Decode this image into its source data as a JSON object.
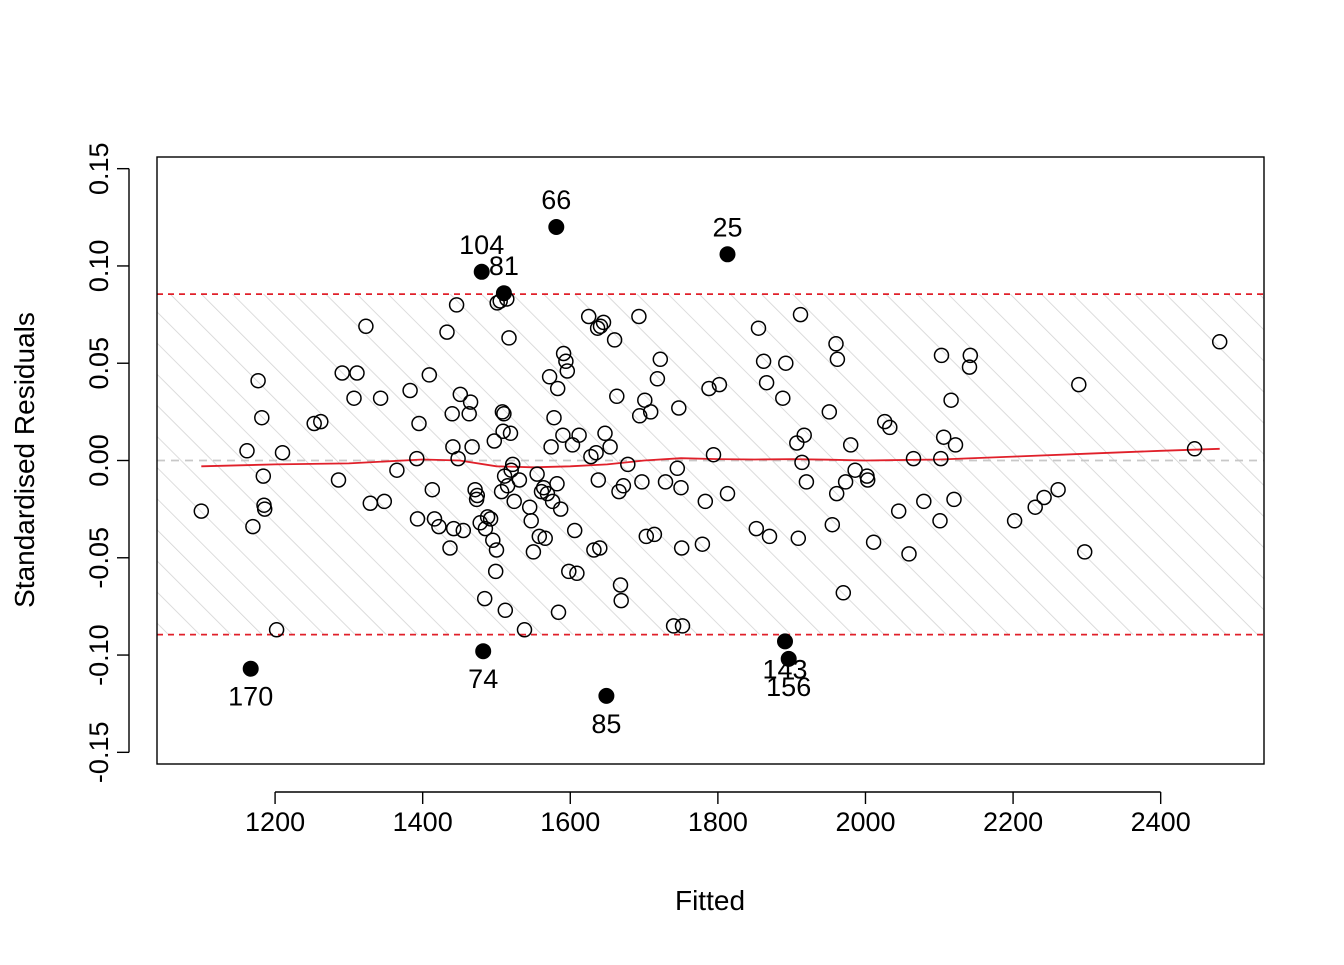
{
  "chart_data": {
    "type": "scatter",
    "title": "",
    "xlabel": "Fitted",
    "ylabel": "Standardised Residuals",
    "xlim": [
      1040,
      2540
    ],
    "ylim": [
      -0.156,
      0.156
    ],
    "xticks": [
      1200,
      1400,
      1600,
      1800,
      2000,
      2200,
      2400
    ],
    "xtick_labels": [
      "1200",
      "1400",
      "1600",
      "1800",
      "2000",
      "2200",
      "2400"
    ],
    "yticks": [
      -0.15,
      -0.1,
      -0.05,
      0.0,
      0.05,
      0.1,
      0.15
    ],
    "ytick_labels": [
      "-0.15",
      "-0.10",
      "-0.05",
      "0.00",
      "0.05",
      "0.10",
      "0.15"
    ],
    "colors": {
      "band_lines": "#e0202a",
      "smooth_line": "#e0202a",
      "zero_line": "#c8c8c8",
      "hatch": "#d4d4d4",
      "points": "#000000"
    },
    "band": {
      "lower": -0.0895,
      "upper": 0.0855
    },
    "zero_line": 0,
    "points": [
      [
        1100,
        -0.026
      ],
      [
        1162,
        0.005
      ],
      [
        1170,
        -0.034
      ],
      [
        1177,
        0.041
      ],
      [
        1182,
        0.022
      ],
      [
        1184,
        -0.008
      ],
      [
        1185,
        -0.023
      ],
      [
        1186,
        -0.025
      ],
      [
        1202,
        -0.087
      ],
      [
        1210,
        0.004
      ],
      [
        1253,
        0.019
      ],
      [
        1262,
        0.02
      ],
      [
        1286,
        -0.01
      ],
      [
        1291,
        0.045
      ],
      [
        1307,
        0.032
      ],
      [
        1311,
        0.045
      ],
      [
        1323,
        0.069
      ],
      [
        1329,
        -0.022
      ],
      [
        1343,
        0.032
      ],
      [
        1348,
        -0.021
      ],
      [
        1365,
        -0.005
      ],
      [
        1383,
        0.036
      ],
      [
        1392,
        0.001
      ],
      [
        1393,
        -0.03
      ],
      [
        1395,
        0.019
      ],
      [
        1409,
        0.044
      ],
      [
        1413,
        -0.015
      ],
      [
        1416,
        -0.03
      ],
      [
        1422,
        -0.034
      ],
      [
        1433,
        0.066
      ],
      [
        1437,
        -0.045
      ],
      [
        1440,
        0.024
      ],
      [
        1441,
        0.007
      ],
      [
        1442,
        -0.035
      ],
      [
        1446,
        0.08
      ],
      [
        1448,
        0.001
      ],
      [
        1451,
        0.034
      ],
      [
        1455,
        -0.036
      ],
      [
        1463,
        0.024
      ],
      [
        1465,
        0.03
      ],
      [
        1467,
        0.007
      ],
      [
        1471,
        -0.015
      ],
      [
        1473,
        -0.02
      ],
      [
        1474,
        -0.018
      ],
      [
        1478,
        -0.032
      ],
      [
        1484,
        -0.071
      ],
      [
        1485,
        -0.035
      ],
      [
        1488,
        -0.029
      ],
      [
        1492,
        -0.03
      ],
      [
        1495,
        -0.041
      ],
      [
        1497,
        0.01
      ],
      [
        1499,
        -0.057
      ],
      [
        1500,
        -0.046
      ],
      [
        1501,
        0.081
      ],
      [
        1505,
        0.082
      ],
      [
        1507,
        -0.016
      ],
      [
        1508,
        0.025
      ],
      [
        1509,
        0.015
      ],
      [
        1510,
        0.024
      ],
      [
        1511,
        -0.008
      ],
      [
        1512,
        -0.077
      ],
      [
        1514,
        0.083
      ],
      [
        1515,
        -0.013
      ],
      [
        1517,
        0.063
      ],
      [
        1519,
        0.014
      ],
      [
        1520,
        -0.005
      ],
      [
        1522,
        -0.002
      ],
      [
        1524,
        -0.021
      ],
      [
        1531,
        -0.01
      ],
      [
        1538,
        -0.087
      ],
      [
        1545,
        -0.024
      ],
      [
        1547,
        -0.031
      ],
      [
        1550,
        -0.047
      ],
      [
        1555,
        -0.007
      ],
      [
        1558,
        -0.039
      ],
      [
        1561,
        -0.016
      ],
      [
        1564,
        -0.014
      ],
      [
        1566,
        -0.04
      ],
      [
        1569,
        -0.017
      ],
      [
        1572,
        0.043
      ],
      [
        1574,
        0.007
      ],
      [
        1576,
        -0.021
      ],
      [
        1578,
        0.022
      ],
      [
        1582,
        -0.012
      ],
      [
        1583,
        0.037
      ],
      [
        1584,
        -0.078
      ],
      [
        1587,
        -0.025
      ],
      [
        1590,
        0.013
      ],
      [
        1591,
        0.055
      ],
      [
        1594,
        0.051
      ],
      [
        1596,
        0.046
      ],
      [
        1598,
        -0.057
      ],
      [
        1603,
        0.008
      ],
      [
        1606,
        -0.036
      ],
      [
        1609,
        -0.058
      ],
      [
        1612,
        0.013
      ],
      [
        1625,
        0.074
      ],
      [
        1628,
        0.002
      ],
      [
        1632,
        -0.046
      ],
      [
        1635,
        0.004
      ],
      [
        1637,
        0.068
      ],
      [
        1638,
        -0.01
      ],
      [
        1640,
        -0.045
      ],
      [
        1641,
        0.069
      ],
      [
        1645,
        0.071
      ],
      [
        1647,
        0.014
      ],
      [
        1654,
        0.007
      ],
      [
        1660,
        0.062
      ],
      [
        1663,
        0.033
      ],
      [
        1666,
        -0.016
      ],
      [
        1668,
        -0.064
      ],
      [
        1669,
        -0.072
      ],
      [
        1672,
        -0.013
      ],
      [
        1678,
        -0.002
      ],
      [
        1693,
        0.074
      ],
      [
        1694,
        0.023
      ],
      [
        1697,
        -0.011
      ],
      [
        1701,
        0.031
      ],
      [
        1703,
        -0.039
      ],
      [
        1709,
        0.025
      ],
      [
        1714,
        -0.038
      ],
      [
        1718,
        0.042
      ],
      [
        1722,
        0.052
      ],
      [
        1729,
        -0.011
      ],
      [
        1740,
        -0.085
      ],
      [
        1745,
        -0.004
      ],
      [
        1747,
        0.027
      ],
      [
        1750,
        -0.014
      ],
      [
        1751,
        -0.045
      ],
      [
        1752,
        -0.085
      ],
      [
        1779,
        -0.043
      ],
      [
        1783,
        -0.021
      ],
      [
        1788,
        0.037
      ],
      [
        1794,
        0.003
      ],
      [
        1802,
        0.039
      ],
      [
        1813,
        -0.017
      ],
      [
        1852,
        -0.035
      ],
      [
        1855,
        0.068
      ],
      [
        1862,
        0.051
      ],
      [
        1866,
        0.04
      ],
      [
        1870,
        -0.039
      ],
      [
        1888,
        0.032
      ],
      [
        1892,
        0.05
      ],
      [
        1907,
        0.009
      ],
      [
        1909,
        -0.04
      ],
      [
        1912,
        0.075
      ],
      [
        1914,
        -0.001
      ],
      [
        1917,
        0.013
      ],
      [
        1920,
        -0.011
      ],
      [
        1951,
        0.025
      ],
      [
        1955,
        -0.033
      ],
      [
        1960,
        0.06
      ],
      [
        1961,
        -0.017
      ],
      [
        1962,
        0.052
      ],
      [
        1970,
        -0.068
      ],
      [
        1973,
        -0.011
      ],
      [
        1980,
        0.008
      ],
      [
        1986,
        -0.005
      ],
      [
        2002,
        -0.008
      ],
      [
        2003,
        -0.01
      ],
      [
        2011,
        -0.042
      ],
      [
        2026,
        0.02
      ],
      [
        2033,
        0.017
      ],
      [
        2045,
        -0.026
      ],
      [
        2059,
        -0.048
      ],
      [
        2065,
        0.001
      ],
      [
        2079,
        -0.021
      ],
      [
        2101,
        -0.031
      ],
      [
        2102,
        0.001
      ],
      [
        2103,
        0.054
      ],
      [
        2106,
        0.012
      ],
      [
        2116,
        0.031
      ],
      [
        2120,
        -0.02
      ],
      [
        2122,
        0.008
      ],
      [
        2141,
        0.048
      ],
      [
        2142,
        0.054
      ],
      [
        2202,
        -0.031
      ],
      [
        2230,
        -0.024
      ],
      [
        2242,
        -0.019
      ],
      [
        2261,
        -0.015
      ],
      [
        2289,
        0.039
      ],
      [
        2297,
        -0.047
      ],
      [
        2446,
        0.006
      ],
      [
        2480,
        0.061
      ]
    ],
    "flagged_points": [
      {
        "x": 1581,
        "y": 0.12,
        "label": "66",
        "label_pos": "above"
      },
      {
        "x": 1813,
        "y": 0.106,
        "label": "25",
        "label_pos": "above"
      },
      {
        "x": 1480,
        "y": 0.097,
        "label": "104",
        "label_pos": "above"
      },
      {
        "x": 1510,
        "y": 0.086,
        "label": "81",
        "label_pos": "above"
      },
      {
        "x": 1167,
        "y": -0.107,
        "label": "170",
        "label_pos": "below"
      },
      {
        "x": 1482,
        "y": -0.098,
        "label": "74",
        "label_pos": "below"
      },
      {
        "x": 1649,
        "y": -0.121,
        "label": "85",
        "label_pos": "below"
      },
      {
        "x": 1891,
        "y": -0.093,
        "label": "143",
        "label_pos": "below"
      },
      {
        "x": 1896,
        "y": -0.102,
        "label": "156",
        "label_pos": "below"
      }
    ],
    "smooth_line": [
      [
        1100,
        -0.003
      ],
      [
        1200,
        -0.002
      ],
      [
        1300,
        -0.0015
      ],
      [
        1400,
        0.0005
      ],
      [
        1450,
        0.0
      ],
      [
        1500,
        -0.003
      ],
      [
        1550,
        -0.0035
      ],
      [
        1600,
        -0.003
      ],
      [
        1650,
        -0.002
      ],
      [
        1700,
        0.0
      ],
      [
        1750,
        0.0012
      ],
      [
        1800,
        0.0007
      ],
      [
        1850,
        0.0005
      ],
      [
        1900,
        0.0007
      ],
      [
        1950,
        0.0004
      ],
      [
        2000,
        0.0
      ],
      [
        2100,
        0.0005
      ],
      [
        2200,
        0.002
      ],
      [
        2300,
        0.0035
      ],
      [
        2400,
        0.005
      ],
      [
        2480,
        0.006
      ]
    ]
  }
}
